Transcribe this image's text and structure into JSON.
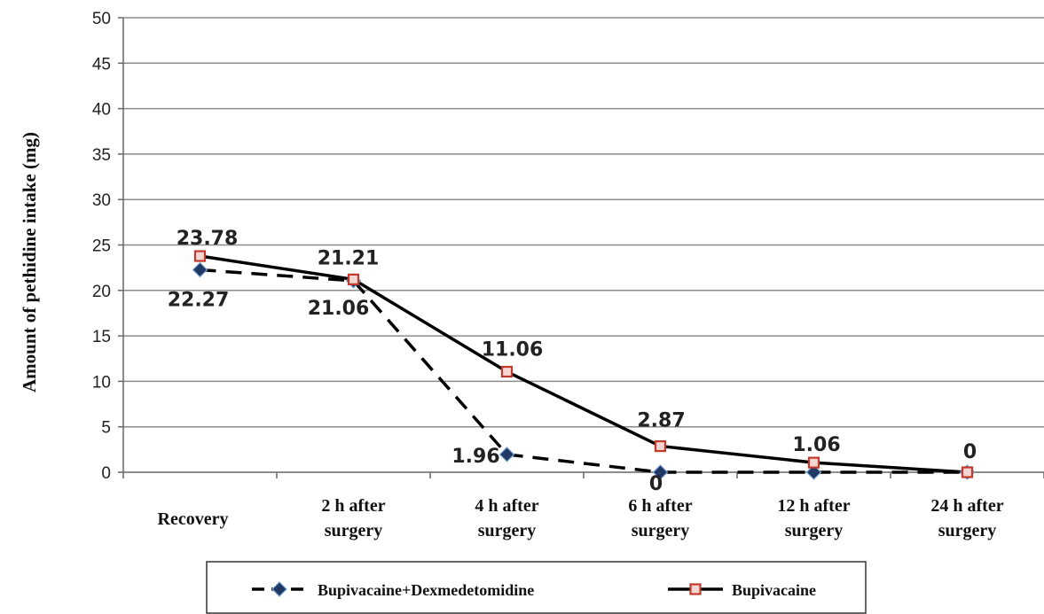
{
  "chart_data": {
    "type": "line",
    "ylabel": "Amount of pethidine intake (mg)",
    "xlabel": "",
    "ylim": [
      0,
      50
    ],
    "yticks": [
      0,
      5,
      10,
      15,
      20,
      25,
      30,
      35,
      40,
      45,
      50
    ],
    "grid": "horizontal",
    "legend_position": "bottom",
    "categories": [
      [
        "Recovery"
      ],
      [
        "2 h after",
        "surgery"
      ],
      [
        "4 h after",
        "surgery"
      ],
      [
        "6 h after",
        "surgery"
      ],
      [
        "12 h after",
        "surgery"
      ],
      [
        "24 h after",
        "surgery"
      ]
    ],
    "series": [
      {
        "name": "Bupivacaine+Dexmedetomidine",
        "values": [
          22.27,
          21.06,
          1.96,
          0,
          0,
          0
        ],
        "labels": [
          "22.27",
          "21.06",
          "1.96",
          "0",
          "",
          ""
        ],
        "color": "#000000",
        "marker_color": "#1f3864",
        "line_style": "dashed",
        "marker": "diamond"
      },
      {
        "name": "Bupivacaine",
        "values": [
          23.78,
          21.21,
          11.06,
          2.87,
          1.06,
          0
        ],
        "labels": [
          "23.78",
          "21.21",
          "11.06",
          "2.87",
          "1.06",
          "0"
        ],
        "color": "#000000",
        "marker_color": "#c0392b",
        "line_style": "solid",
        "marker": "square"
      }
    ]
  }
}
